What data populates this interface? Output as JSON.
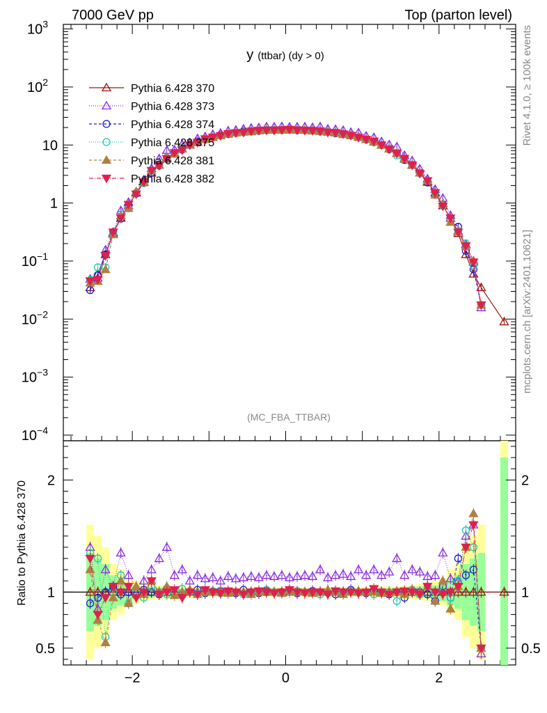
{
  "header": {
    "left": "7000 GeV pp",
    "right": "Top (parton level)",
    "side_right": "Rivet 4.1.0, ≥ 100k events",
    "side_right_lower": "mcplots.cern.ch [arXiv:2401.10621]"
  },
  "main_plot": {
    "title_main": "y",
    "title_sub": "(ttbar) (dy > 0)",
    "watermark": "(MC_FBA_TTBAR)",
    "y_ticks": [
      {
        "base": "10",
        "exp": "3",
        "value": 1000
      },
      {
        "base": "10",
        "exp": "2",
        "value": 100
      },
      {
        "base": "10",
        "exp": "",
        "value": 10
      },
      {
        "base": "1",
        "exp": "",
        "value": 1
      },
      {
        "base": "10",
        "exp": "−1",
        "value": 0.1
      },
      {
        "base": "10",
        "exp": "−2",
        "value": 0.01
      },
      {
        "base": "10",
        "exp": "−3",
        "value": 0.001
      },
      {
        "base": "10",
        "exp": "−4",
        "value": 0.0001
      }
    ]
  },
  "ratio_plot": {
    "ylabel": "Ratio to Pythia 6.428 370",
    "y_ticks": [
      "2",
      "1",
      "0.5"
    ],
    "x_ticks": [
      "−2",
      "0",
      "2"
    ]
  },
  "legend": [
    {
      "label": "Pythia 6.428 370",
      "color": "#a01010",
      "marker": "triangle-up-open",
      "dash": ""
    },
    {
      "label": "Pythia 6.428 373",
      "color": "#8a2be2",
      "marker": "triangle-up-open",
      "dash": "1,2"
    },
    {
      "label": "Pythia 6.428 374",
      "color": "#1a1acc",
      "marker": "circle-open",
      "dash": "4,3"
    },
    {
      "label": "Pythia 6.428 375",
      "color": "#20c8b0",
      "marker": "circle-open",
      "dash": "1,2"
    },
    {
      "label": "Pythia 6.428 381",
      "color": "#b08040",
      "marker": "triangle-up-filled",
      "dash": "4,3"
    },
    {
      "label": "Pythia 6.428 382",
      "color": "#e0204c",
      "marker": "triangle-down-filled",
      "dash": "6,2,1,2"
    }
  ],
  "chart_data": {
    "type": "scatter",
    "title": "y (ttbar) (dy > 0)",
    "xlabel": "",
    "ylabel": "",
    "xlim": [
      -2.9,
      3.0
    ],
    "ylim": [
      8e-05,
      1200
    ],
    "yscale": "log",
    "ratio_ylim": [
      0.35,
      2.35
    ],
    "x": [
      -2.55,
      -2.45,
      -2.35,
      -2.25,
      -2.15,
      -2.05,
      -1.95,
      -1.85,
      -1.75,
      -1.65,
      -1.55,
      -1.45,
      -1.35,
      -1.25,
      -1.15,
      -1.05,
      -0.95,
      -0.85,
      -0.75,
      -0.65,
      -0.55,
      -0.45,
      -0.35,
      -0.25,
      -0.15,
      -0.05,
      0.05,
      0.15,
      0.25,
      0.35,
      0.45,
      0.55,
      0.65,
      0.75,
      0.85,
      0.95,
      1.05,
      1.15,
      1.25,
      1.35,
      1.45,
      1.55,
      1.65,
      1.75,
      1.85,
      1.95,
      2.05,
      2.15,
      2.25,
      2.35,
      2.45,
      2.55,
      2.85
    ],
    "reference": [
      0.035,
      0.06,
      0.13,
      0.3,
      0.55,
      0.9,
      1.5,
      2.3,
      3.3,
      4.5,
      5.8,
      7.2,
      8.6,
      10.0,
      11.3,
      12.5,
      13.6,
      14.6,
      15.5,
      16.2,
      16.8,
      17.3,
      17.7,
      18.0,
      18.1,
      18.2,
      18.2,
      18.1,
      18.0,
      17.7,
      17.3,
      16.8,
      16.2,
      15.5,
      14.6,
      13.6,
      12.5,
      11.3,
      10.0,
      8.6,
      7.2,
      5.8,
      4.5,
      3.3,
      2.3,
      1.5,
      0.9,
      0.55,
      0.3,
      0.13,
      0.06,
      0.035,
      0.009
    ],
    "series": [
      {
        "name": "Pythia 6.428 370",
        "ratio": [
          1.0,
          1.0,
          1.0,
          1.0,
          1.0,
          1.0,
          1.0,
          1.0,
          1.0,
          1.0,
          1.0,
          1.0,
          1.0,
          1.0,
          1.0,
          1.0,
          1.0,
          1.0,
          1.0,
          1.0,
          1.0,
          1.0,
          1.0,
          1.0,
          1.0,
          1.0,
          1.0,
          1.0,
          1.0,
          1.0,
          1.0,
          1.0,
          1.0,
          1.0,
          1.0,
          1.0,
          1.0,
          1.0,
          1.0,
          1.0,
          1.0,
          1.0,
          1.0,
          1.0,
          1.0,
          1.0,
          1.0,
          1.0,
          1.0,
          1.0,
          1.0,
          1.0,
          1.0
        ]
      },
      {
        "name": "Pythia 6.428 373",
        "ratio": [
          1.4,
          0.85,
          1.2,
          1.05,
          1.35,
          1.15,
          1.05,
          1.1,
          1.2,
          1.3,
          1.4,
          1.15,
          1.2,
          1.1,
          1.15,
          1.12,
          1.13,
          1.1,
          1.14,
          1.12,
          1.13,
          1.14,
          1.13,
          1.15,
          1.14,
          1.15,
          1.13,
          1.14,
          1.15,
          1.14,
          1.2,
          1.13,
          1.15,
          1.16,
          1.14,
          1.2,
          1.15,
          1.2,
          1.15,
          1.18,
          1.3,
          1.15,
          1.2,
          1.18,
          1.14,
          1.15,
          1.35,
          1.12,
          1.1,
          1.5,
          1.6,
          0.45,
          0.0
        ]
      },
      {
        "name": "Pythia 6.428 374",
        "ratio": [
          0.9,
          0.95,
          1.0,
          1.05,
          0.98,
          1.0,
          0.97,
          1.02,
          1.0,
          0.98,
          1.03,
          1.0,
          0.97,
          1.0,
          1.02,
          0.99,
          1.0,
          1.01,
          1.0,
          0.99,
          1.02,
          1.0,
          0.99,
          1.01,
          1.0,
          1.0,
          1.02,
          0.99,
          1.0,
          1.01,
          1.0,
          1.0,
          0.98,
          1.0,
          1.02,
          1.0,
          0.99,
          1.01,
          1.0,
          0.98,
          1.0,
          0.95,
          1.02,
          1.0,
          0.98,
          0.92,
          1.05,
          0.95,
          1.3,
          1.15,
          1.2,
          0.5,
          0.0
        ]
      },
      {
        "name": "Pythia 6.428 375",
        "ratio": [
          1.35,
          1.3,
          0.6,
          1.0,
          1.15,
          0.9,
          1.0,
          0.95,
          1.05,
          1.0,
          0.98,
          1.0,
          1.03,
          1.0,
          0.99,
          1.0,
          1.01,
          0.99,
          1.0,
          1.0,
          0.98,
          1.0,
          1.0,
          1.02,
          1.0,
          0.99,
          1.0,
          1.01,
          1.0,
          1.0,
          0.98,
          1.0,
          1.0,
          0.99,
          1.01,
          1.0,
          1.0,
          0.98,
          1.0,
          1.0,
          0.92,
          1.0,
          1.02,
          0.98,
          1.05,
          1.0,
          1.0,
          0.95,
          1.1,
          1.55,
          1.4,
          0.5,
          0.0
        ]
      },
      {
        "name": "Pythia 6.428 381",
        "ratio": [
          1.2,
          0.75,
          0.55,
          0.95,
          1.1,
          0.9,
          1.05,
          0.98,
          1.1,
          1.0,
          1.05,
          0.97,
          1.0,
          1.02,
          0.98,
          1.0,
          1.0,
          1.01,
          0.99,
          1.0,
          1.0,
          0.98,
          1.0,
          1.01,
          1.0,
          0.99,
          1.01,
          1.0,
          1.0,
          0.99,
          1.0,
          1.02,
          1.0,
          0.98,
          1.0,
          1.01,
          1.0,
          1.0,
          0.99,
          1.0,
          1.0,
          0.98,
          1.02,
          1.0,
          1.05,
          0.92,
          1.1,
          0.85,
          1.05,
          1.4,
          1.7,
          0.5,
          0.0
        ]
      },
      {
        "name": "Pythia 6.428 382",
        "ratio": [
          1.3,
          0.8,
          0.95,
          1.05,
          1.0,
          1.05,
          0.95,
          1.0,
          1.1,
          0.98,
          1.0,
          1.02,
          0.95,
          1.0,
          0.98,
          1.02,
          1.0,
          0.99,
          1.01,
          1.0,
          0.98,
          1.0,
          1.01,
          1.0,
          0.99,
          1.0,
          1.02,
          1.0,
          0.99,
          1.0,
          1.0,
          0.98,
          1.01,
          1.0,
          1.0,
          0.99,
          1.0,
          1.03,
          1.0,
          0.98,
          1.0,
          1.01,
          1.0,
          0.98,
          1.05,
          1.0,
          0.98,
          1.0,
          1.05,
          1.4,
          1.6,
          0.5,
          0.0
        ]
      }
    ],
    "band_inner": [
      0.35,
      0.3,
      0.25,
      0.15,
      0.12,
      0.08,
      0.06,
      0.05,
      0.05,
      0.04,
      0.04,
      0.04,
      0.03,
      0.03,
      0.03,
      0.03,
      0.03,
      0.03,
      0.03,
      0.03,
      0.03,
      0.03,
      0.03,
      0.03,
      0.03,
      0.03,
      0.03,
      0.03,
      0.03,
      0.03,
      0.03,
      0.03,
      0.03,
      0.03,
      0.03,
      0.03,
      0.03,
      0.03,
      0.03,
      0.03,
      0.04,
      0.04,
      0.04,
      0.05,
      0.05,
      0.06,
      0.08,
      0.12,
      0.15,
      0.25,
      0.3,
      0.35,
      1.2
    ],
    "band_outer": [
      0.6,
      0.5,
      0.4,
      0.25,
      0.2,
      0.12,
      0.1,
      0.08,
      0.07,
      0.06,
      0.06,
      0.05,
      0.05,
      0.05,
      0.05,
      0.04,
      0.04,
      0.04,
      0.04,
      0.04,
      0.04,
      0.04,
      0.04,
      0.04,
      0.04,
      0.04,
      0.04,
      0.04,
      0.04,
      0.04,
      0.04,
      0.04,
      0.04,
      0.04,
      0.04,
      0.04,
      0.04,
      0.05,
      0.05,
      0.05,
      0.05,
      0.06,
      0.06,
      0.07,
      0.08,
      0.1,
      0.12,
      0.2,
      0.25,
      0.4,
      0.5,
      0.6,
      1.5
    ]
  }
}
